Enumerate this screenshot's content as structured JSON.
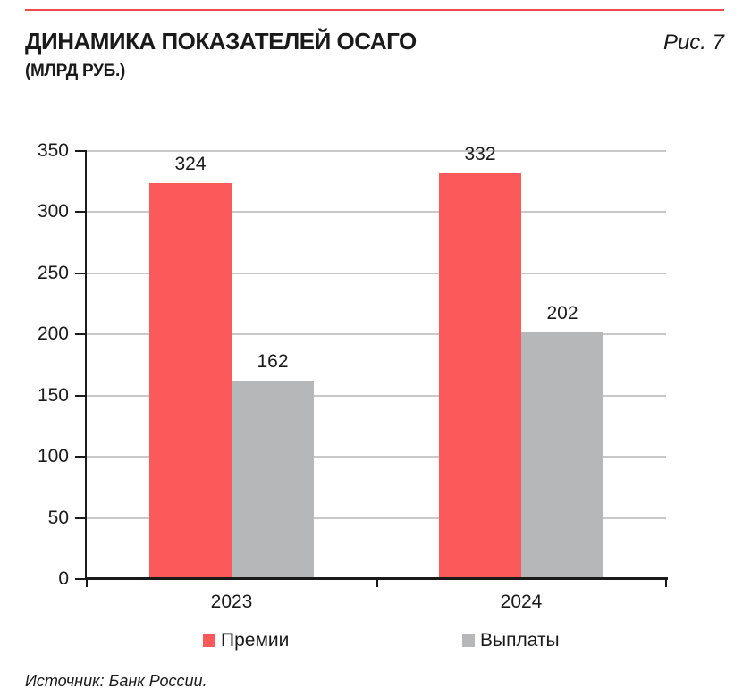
{
  "header": {
    "title": "ДИНАМИКА ПОКАЗАТЕЛЕЙ ОСАГО",
    "subtitle": "(МЛРД РУБ.)",
    "figure_label": "Рис. 7"
  },
  "source": "Источник: Банк России.",
  "colors": {
    "top_rule": "#ef4a50",
    "bar_red": "#fc5a5a",
    "bar_gray": "#b6b7b9",
    "gridline": "#c8c8c8",
    "axis": "#1a1a1a",
    "text": "#1a1a1a"
  },
  "chart_data": {
    "type": "bar",
    "title": "ДИНАМИКА ПОКАЗАТЕЛЕЙ ОСАГО (МЛРД РУБ.)",
    "categories": [
      "2023",
      "2024"
    ],
    "series": [
      {
        "name": "Премии",
        "color": "#fc5a5a",
        "values": [
          324,
          332
        ]
      },
      {
        "name": "Выплаты",
        "color": "#b6b7b9",
        "values": [
          162,
          202
        ]
      }
    ],
    "ylim": [
      0,
      350
    ],
    "ytick_step": 50,
    "yticks": [
      0,
      50,
      100,
      150,
      200,
      250,
      300,
      350
    ],
    "grid": true,
    "value_labels": true,
    "legend_position": "bottom"
  }
}
